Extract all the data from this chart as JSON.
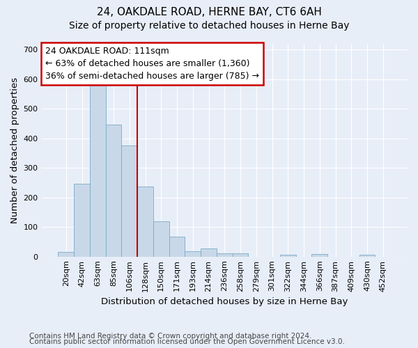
{
  "title": "24, OAKDALE ROAD, HERNE BAY, CT6 6AH",
  "subtitle": "Size of property relative to detached houses in Herne Bay",
  "xlabel": "Distribution of detached houses by size in Herne Bay",
  "ylabel": "Number of detached properties",
  "categories": [
    "20sqm",
    "42sqm",
    "63sqm",
    "85sqm",
    "106sqm",
    "128sqm",
    "150sqm",
    "171sqm",
    "193sqm",
    "214sqm",
    "236sqm",
    "258sqm",
    "279sqm",
    "301sqm",
    "322sqm",
    "344sqm",
    "366sqm",
    "387sqm",
    "409sqm",
    "430sqm",
    "452sqm"
  ],
  "values": [
    15,
    247,
    588,
    447,
    375,
    237,
    120,
    68,
    18,
    28,
    10,
    10,
    0,
    0,
    6,
    0,
    8,
    0,
    0,
    6,
    0
  ],
  "bar_color": "#c8d8e8",
  "bar_edge_color": "#7aaac8",
  "vline_color": "#cc0000",
  "vline_index": 4.5,
  "annotation_text": "24 OAKDALE ROAD: 111sqm\n← 63% of detached houses are smaller (1,360)\n36% of semi-detached houses are larger (785) →",
  "annotation_box_color": "white",
  "annotation_box_edge_color": "#cc0000",
  "footnote1": "Contains HM Land Registry data © Crown copyright and database right 2024.",
  "footnote2": "Contains public sector information licensed under the Open Government Licence v3.0.",
  "ylim": [
    0,
    720
  ],
  "yticks": [
    0,
    100,
    200,
    300,
    400,
    500,
    600,
    700
  ],
  "background_color": "#e8eef8",
  "axes_background": "#e8eef8",
  "grid_color": "white",
  "title_fontsize": 11,
  "subtitle_fontsize": 10,
  "label_fontsize": 9.5,
  "tick_fontsize": 8,
  "annotation_fontsize": 9,
  "footnote_fontsize": 7.5
}
